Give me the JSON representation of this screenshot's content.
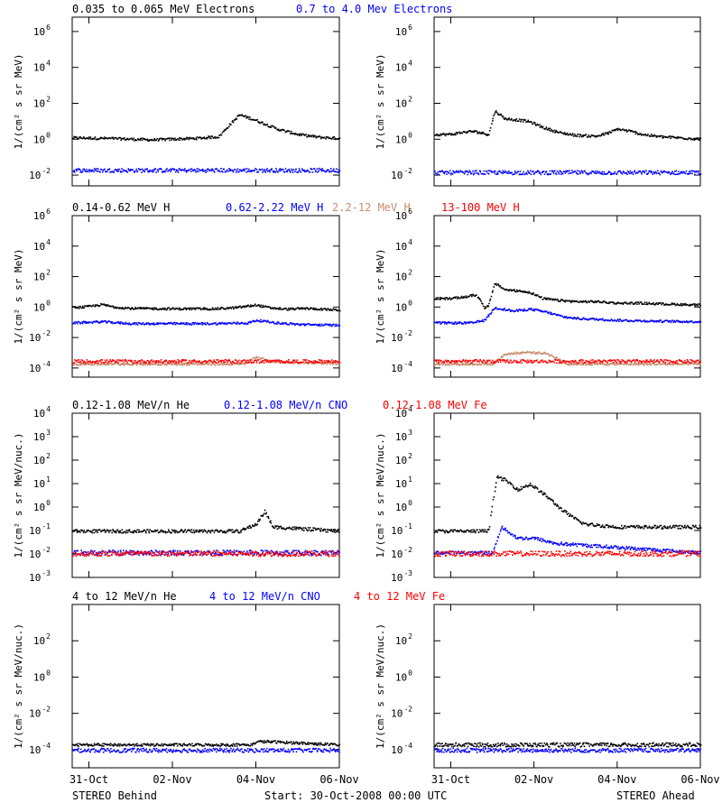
{
  "footer": {
    "left_label": "STEREO Behind",
    "center_label": "Start: 30-Oct-2008 00:00 UTC",
    "right_label": "STEREO Ahead"
  },
  "x_axis": {
    "tick_labels": [
      "31-Oct",
      "02-Nov",
      "04-Nov",
      "06-Nov"
    ],
    "tick_days": [
      1,
      3,
      5,
      7
    ],
    "range_days": [
      0.6,
      7.0
    ]
  },
  "colors": {
    "black": "#000000",
    "blue": "#0000ff",
    "tan": "#c88c6e",
    "red": "#ff0000"
  },
  "chart_data": [
    {
      "type": "scatter",
      "row": "electrons",
      "legend": [
        {
          "label": "0.035 to 0.065 MeV Electrons",
          "color": "#000000"
        },
        {
          "label": "0.7 to 4.0 Mev Electrons",
          "color": "#0000ff"
        }
      ],
      "ylabel": "1/(cm² s sr MeV)",
      "y_scale": "log",
      "y_ticks": [
        "10^-2",
        "10^0",
        "10^2",
        "10^4",
        "10^6"
      ],
      "panels": [
        {
          "name": "STEREO Behind",
          "series": [
            {
              "color": "#000000",
              "x": [
                0.6,
                1.5,
                2.5,
                3.5,
                4.1,
                4.3,
                4.6,
                5.0,
                5.5,
                6.0,
                6.5,
                7.0
              ],
              "y": [
                1.3,
                1.2,
                1.0,
                1.2,
                1.5,
                5,
                25,
                12,
                4,
                2,
                1.4,
                1.2
              ]
            },
            {
              "color": "#0000ff",
              "x": [
                0.6,
                7.0
              ],
              "y": [
                0.02,
                0.02
              ]
            }
          ]
        },
        {
          "name": "STEREO Ahead",
          "series": [
            {
              "color": "#000000",
              "x": [
                0.6,
                1.0,
                1.2,
                1.5,
                1.7,
                1.9,
                2.05,
                2.3,
                2.7,
                2.9,
                3.2,
                3.6,
                4.0,
                4.5,
                4.8,
                5.0,
                5.3,
                5.6,
                6.0,
                6.5,
                7.0
              ],
              "y": [
                2,
                2,
                2.5,
                3,
                2.5,
                2,
                40,
                15,
                12,
                10,
                5,
                2.5,
                1.8,
                1.6,
                2.5,
                4,
                3,
                2,
                1.5,
                1.3,
                1.1
              ]
            },
            {
              "color": "#0000ff",
              "x": [
                0.6,
                7.0
              ],
              "y": [
                0.015,
                0.015
              ]
            }
          ]
        }
      ]
    },
    {
      "type": "scatter",
      "row": "protons",
      "legend": [
        {
          "label": "0.14-0.62 MeV H",
          "color": "#000000"
        },
        {
          "label": "0.62-2.22 MeV H",
          "color": "#0000ff"
        },
        {
          "label": "2.2-12 MeV H",
          "color": "#c88c6e"
        },
        {
          "label": "13-100 MeV H",
          "color": "#ff0000"
        }
      ],
      "ylabel": "1/(cm² s sr MeV)",
      "y_scale": "log",
      "y_ticks": [
        "10^-4",
        "10^-2",
        "10^0",
        "10^2",
        "10^4",
        "10^6"
      ],
      "panels": [
        {
          "name": "STEREO Behind",
          "series": [
            {
              "color": "#000000",
              "x": [
                0.6,
                1.0,
                1.3,
                1.6,
                2.0,
                3.0,
                4.0,
                4.5,
                5.0,
                5.3,
                5.7,
                6.2,
                7.0
              ],
              "y": [
                1.0,
                1.2,
                1.6,
                1.1,
                0.9,
                0.85,
                0.85,
                1.0,
                1.5,
                1.0,
                0.8,
                0.9,
                0.7
              ]
            },
            {
              "color": "#0000ff",
              "x": [
                0.6,
                1.3,
                2.0,
                3.0,
                4.0,
                4.8,
                5.0,
                5.5,
                6.0,
                7.0
              ],
              "y": [
                0.1,
                0.12,
                0.09,
                0.09,
                0.09,
                0.1,
                0.15,
                0.1,
                0.08,
                0.07
              ]
            },
            {
              "color": "#c88c6e",
              "x": [
                0.6,
                4.7,
                5.0,
                5.3,
                7.0
              ],
              "y": [
                0.0002,
                0.0002,
                0.0006,
                0.0003,
                0.0002
              ]
            },
            {
              "color": "#ff0000",
              "x": [
                0.6,
                7.0
              ],
              "y": [
                0.0003,
                0.0003
              ]
            }
          ]
        },
        {
          "name": "STEREO Ahead",
          "series": [
            {
              "color": "#000000",
              "x": [
                0.6,
                1.0,
                1.3,
                1.6,
                1.7,
                1.8,
                1.9,
                2.05,
                2.3,
                2.7,
                2.9,
                3.2,
                3.6,
                4.0,
                4.5,
                5.0,
                5.5,
                6.0,
                7.0
              ],
              "y": [
                4,
                4,
                5,
                7,
                3,
                1,
                1.5,
                40,
                15,
                12,
                10,
                4,
                3,
                2.5,
                2.5,
                2,
                2,
                1.8,
                1.5
              ]
            },
            {
              "color": "#0000ff",
              "x": [
                0.6,
                1.5,
                1.8,
                2.05,
                2.5,
                2.9,
                3.3,
                3.7,
                4.0,
                5.0,
                6.0,
                7.0
              ],
              "y": [
                0.1,
                0.1,
                0.15,
                1.0,
                0.6,
                0.8,
                0.5,
                0.25,
                0.2,
                0.15,
                0.13,
                0.12
              ]
            },
            {
              "color": "#c88c6e",
              "x": [
                0.6,
                2.0,
                2.3,
                2.8,
                3.3,
                3.8,
                7.0
              ],
              "y": [
                0.0002,
                0.0002,
                0.0009,
                0.0012,
                0.001,
                0.0002,
                0.0002
              ]
            },
            {
              "color": "#ff0000",
              "x": [
                0.6,
                7.0
              ],
              "y": [
                0.0003,
                0.0003
              ]
            }
          ]
        }
      ]
    },
    {
      "type": "scatter",
      "row": "heavy-ions",
      "legend": [
        {
          "label": "0.12-1.08 MeV/n He",
          "color": "#000000"
        },
        {
          "label": "0.12-1.08 MeV/n CNO",
          "color": "#0000ff"
        },
        {
          "label": "0.12-1.08 MeV Fe",
          "color": "#ff0000"
        }
      ],
      "ylabel": "1/(cm² s sr MeV/nuc.)",
      "y_scale": "log",
      "y_ticks": [
        "10^-3",
        "10^-2",
        "10^-1",
        "10^0",
        "10^1",
        "10^2",
        "10^3",
        "10^4"
      ],
      "panels": [
        {
          "name": "STEREO Behind",
          "series": [
            {
              "color": "#000000",
              "x": [
                0.6,
                4.6,
                5.0,
                5.2,
                5.4,
                7.0
              ],
              "y": [
                0.1,
                0.1,
                0.2,
                0.7,
                0.15,
                0.1
              ]
            },
            {
              "color": "#0000ff",
              "x": [
                0.6,
                7.0
              ],
              "y": [
                0.012,
                0.012
              ]
            },
            {
              "color": "#ff0000",
              "x": [
                0.6,
                7.0
              ],
              "y": [
                0.011,
                0.011
              ]
            }
          ]
        },
        {
          "name": "STEREO Ahead",
          "series": [
            {
              "color": "#000000",
              "x": [
                0.6,
                1.9,
                2.0,
                2.1,
                2.3,
                2.6,
                2.9,
                3.3,
                3.6,
                3.9,
                4.2,
                5.0,
                7.0
              ],
              "y": [
                0.1,
                0.1,
                2,
                20,
                15,
                6,
                10,
                3,
                1,
                0.4,
                0.2,
                0.15,
                0.15
              ]
            },
            {
              "color": "#0000ff",
              "x": [
                0.6,
                2.0,
                2.2,
                2.6,
                3.0,
                3.5,
                7.0
              ],
              "y": [
                0.012,
                0.012,
                0.15,
                0.05,
                0.05,
                0.03,
                0.012
              ]
            },
            {
              "color": "#ff0000",
              "x": [
                0.6,
                7.0
              ],
              "y": [
                0.011,
                0.011
              ]
            }
          ]
        }
      ]
    },
    {
      "type": "scatter",
      "row": "high-energy-ions",
      "legend": [
        {
          "label": "4 to 12 MeV/n He",
          "color": "#000000"
        },
        {
          "label": "4 to 12 MeV/n CNO",
          "color": "#0000ff"
        },
        {
          "label": "4 to 12 MeV Fe",
          "color": "#ff0000"
        }
      ],
      "ylabel": "1/(cm² s sr MeV/nuc.)",
      "y_scale": "log",
      "y_ticks": [
        "10^-4",
        "10^-2",
        "10^0",
        "10^2"
      ],
      "panels": [
        {
          "name": "STEREO Behind",
          "series": [
            {
              "color": "#000000",
              "x": [
                0.6,
                4.9,
                5.0,
                5.3,
                7.0
              ],
              "y": [
                0.0002,
                0.0002,
                0.0003,
                0.0003,
                0.0002
              ]
            },
            {
              "color": "#0000ff",
              "x": [
                0.6,
                7.0
              ],
              "y": [
                0.0001,
                0.0001
              ]
            }
          ]
        },
        {
          "name": "STEREO Ahead",
          "series": [
            {
              "color": "#000000",
              "x": [
                0.6,
                7.0
              ],
              "y": [
                0.0002,
                0.0002
              ]
            },
            {
              "color": "#0000ff",
              "x": [
                0.6,
                7.0
              ],
              "y": [
                0.0001,
                0.0001
              ]
            }
          ]
        }
      ]
    }
  ]
}
